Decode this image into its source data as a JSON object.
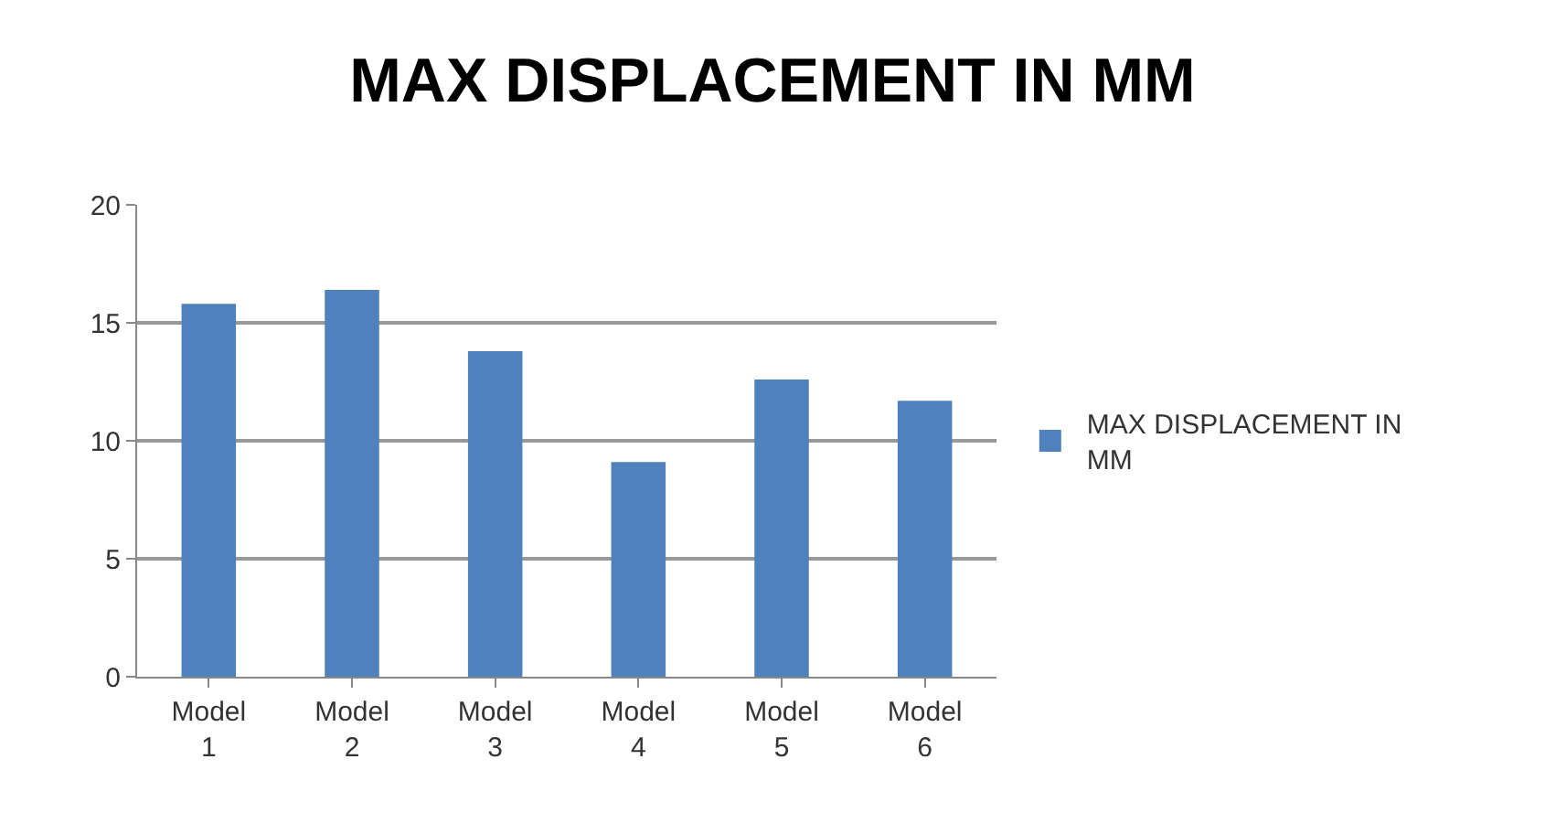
{
  "chart_data": {
    "type": "bar",
    "title": "MAX DISPLACEMENT IN MM",
    "categories": [
      "Model 1",
      "Model 2",
      "Model 3",
      "Model 4",
      "Model 5",
      "Model 6"
    ],
    "series": [
      {
        "name": "MAX DISPLACEMENT IN MM",
        "color": "#4f81bd",
        "values": [
          15.8,
          16.4,
          13.8,
          9.1,
          12.6,
          11.7
        ]
      }
    ],
    "ylim": [
      0,
      20
    ],
    "yticks": [
      0,
      5,
      10,
      15,
      20
    ],
    "grid": "y",
    "legend": "right"
  }
}
